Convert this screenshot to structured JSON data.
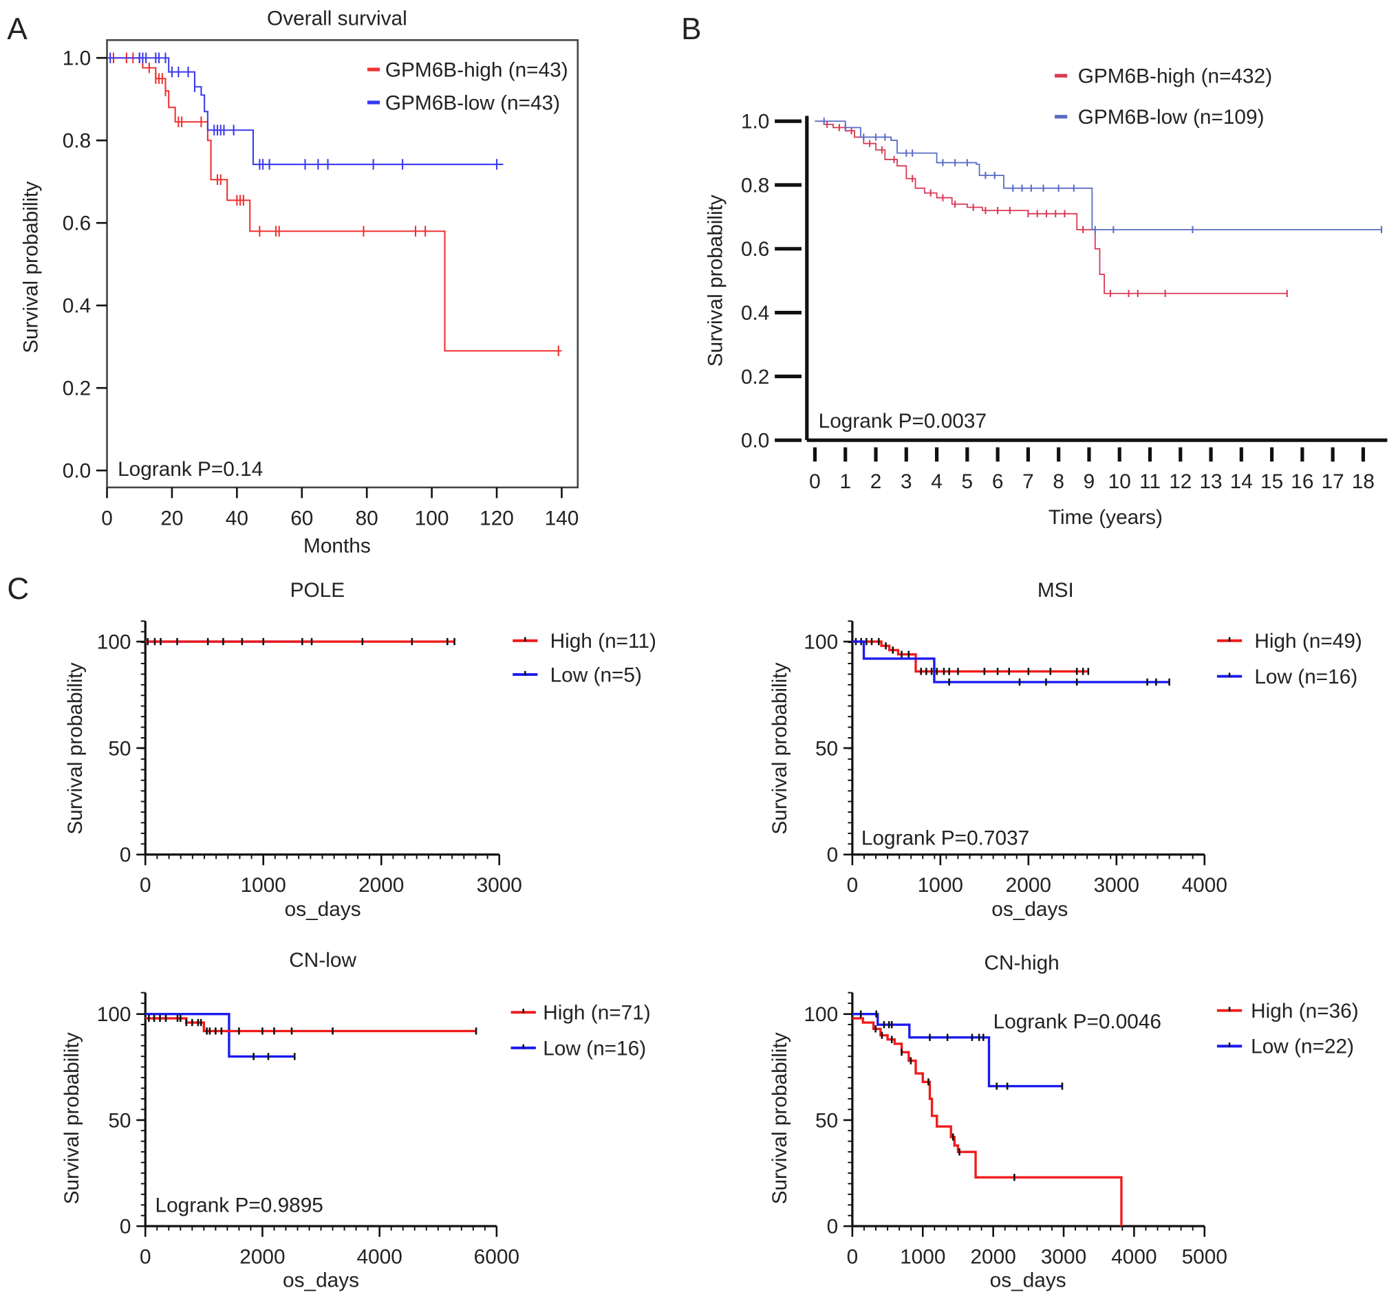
{
  "chart_data": [
    {
      "id": "A",
      "panel_label": "A",
      "type": "line",
      "subtype": "kaplan-meier",
      "title": "Overall survival",
      "xlabel": "Months",
      "ylabel": "Survival probability",
      "xlim": [
        0,
        140
      ],
      "ylim": [
        0,
        1
      ],
      "xticks": [
        "0",
        "20",
        "40",
        "60",
        "80",
        "100",
        "120",
        "140"
      ],
      "xtick_values": [
        0,
        20,
        40,
        60,
        80,
        100,
        120,
        140
      ],
      "yticks": [
        "0.0",
        "0.2",
        "0.4",
        "0.6",
        "0.8",
        "1.0"
      ],
      "ytick_values": [
        0,
        0.2,
        0.4,
        0.6,
        0.8,
        1.0
      ],
      "annotation": "Logrank P=0.14",
      "legend_position": "top-right",
      "series": [
        {
          "name": "GPM6B-high (n=43)",
          "color": "#f03030",
          "steps": [
            [
              0,
              1
            ],
            [
              11,
              0.976
            ],
            [
              15,
              0.95
            ],
            [
              18,
              0.92
            ],
            [
              19,
              0.88
            ],
            [
              21,
              0.845
            ],
            [
              31,
              0.8
            ],
            [
              32,
              0.705
            ],
            [
              37,
              0.655
            ],
            [
              44,
              0.58
            ],
            [
              104,
              0.29
            ],
            [
              140,
              0.29
            ]
          ],
          "censored": [
            2,
            6,
            8,
            10,
            13,
            15,
            16,
            17,
            18,
            22,
            23,
            29,
            34,
            35,
            40,
            41,
            42,
            47,
            52,
            53,
            79,
            95,
            98,
            139
          ]
        },
        {
          "name": "GPM6B-low (n=43)",
          "color": "#3a3af0",
          "steps": [
            [
              0,
              1
            ],
            [
              19,
              0.966
            ],
            [
              27,
              0.93
            ],
            [
              29,
              0.91
            ],
            [
              30,
              0.87
            ],
            [
              31,
              0.825
            ],
            [
              45,
              0.742
            ],
            [
              122,
              0.742
            ]
          ],
          "censored": [
            1,
            10,
            11,
            12,
            15,
            16,
            18,
            20,
            22,
            25,
            27,
            33,
            34,
            35,
            36,
            39,
            47,
            48,
            50,
            61,
            65,
            68,
            82,
            91,
            120
          ]
        }
      ]
    },
    {
      "id": "B",
      "panel_label": "B",
      "type": "line",
      "subtype": "kaplan-meier",
      "title": "",
      "xlabel": "Time (years)",
      "ylabel": "Survival probability",
      "xlim": [
        0,
        18
      ],
      "ylim": [
        0,
        1
      ],
      "xticks": [
        "0",
        "1",
        "2",
        "3",
        "4",
        "5",
        "6",
        "7",
        "8",
        "9",
        "10",
        "11",
        "12",
        "13",
        "14",
        "15",
        "16",
        "17",
        "18"
      ],
      "xtick_values": [
        0,
        1,
        2,
        3,
        4,
        5,
        6,
        7,
        8,
        9,
        10,
        11,
        12,
        13,
        14,
        15,
        16,
        17,
        18
      ],
      "yticks": [
        "0.0",
        "0.2",
        "0.4",
        "0.6",
        "0.8",
        "1.0"
      ],
      "ytick_values": [
        0,
        0.2,
        0.4,
        0.6,
        0.8,
        1.0
      ],
      "annotation": "Logrank P=0.0037",
      "legend_position": "top",
      "series": [
        {
          "name": "GPM6B-high (n=432)",
          "color": "#d83a55",
          "steps": [
            [
              0,
              1
            ],
            [
              0.3,
              0.99
            ],
            [
              0.6,
              0.98
            ],
            [
              1,
              0.97
            ],
            [
              1.3,
              0.95
            ],
            [
              1.6,
              0.93
            ],
            [
              2,
              0.91
            ],
            [
              2.3,
              0.88
            ],
            [
              2.7,
              0.86
            ],
            [
              3,
              0.82
            ],
            [
              3.3,
              0.79
            ],
            [
              3.6,
              0.775
            ],
            [
              4,
              0.76
            ],
            [
              4.5,
              0.74
            ],
            [
              5,
              0.73
            ],
            [
              5.5,
              0.72
            ],
            [
              6.5,
              0.72
            ],
            [
              7,
              0.71
            ],
            [
              8.5,
              0.71
            ],
            [
              8.6,
              0.66
            ],
            [
              9.1,
              0.66
            ],
            [
              9.2,
              0.6
            ],
            [
              9.35,
              0.52
            ],
            [
              9.5,
              0.46
            ],
            [
              15.5,
              0.46
            ]
          ],
          "censored": [
            0.4,
            0.8,
            1.2,
            1.8,
            2.2,
            2.6,
            3.2,
            3.8,
            4.2,
            4.6,
            5.2,
            5.6,
            6,
            6.4,
            7,
            7.3,
            7.6,
            7.9,
            8.2,
            8.8,
            9.7,
            10.3,
            10.6,
            11.5,
            15.5
          ]
        },
        {
          "name": "GPM6B-low (n=109)",
          "color": "#5a6cc6",
          "steps": [
            [
              0,
              1
            ],
            [
              1,
              0.98
            ],
            [
              1.5,
              0.95
            ],
            [
              2.5,
              0.94
            ],
            [
              2.7,
              0.9
            ],
            [
              3.8,
              0.9
            ],
            [
              4,
              0.87
            ],
            [
              5.3,
              0.865
            ],
            [
              5.4,
              0.83
            ],
            [
              6.1,
              0.83
            ],
            [
              6.2,
              0.79
            ],
            [
              9,
              0.79
            ],
            [
              9.1,
              0.66
            ],
            [
              18.6,
              0.66
            ]
          ],
          "censored": [
            0.3,
            1,
            1.6,
            2,
            2.3,
            3,
            3.2,
            4.2,
            4.6,
            5,
            5.6,
            5.9,
            6.5,
            6.8,
            7.1,
            7.5,
            8,
            8.5,
            9.2,
            9.8,
            12.4,
            18.6
          ]
        }
      ]
    },
    {
      "id": "C-POLE",
      "panel_label": "C",
      "type": "line",
      "subtype": "kaplan-meier",
      "title": "POLE",
      "xlabel": "os_days",
      "ylabel": "Survival probability",
      "xlim": [
        0,
        3000
      ],
      "ylim": [
        0,
        100
      ],
      "xticks": [
        "0",
        "1000",
        "2000",
        "3000"
      ],
      "xtick_values": [
        0,
        1000,
        2000,
        3000
      ],
      "yticks": [
        "0",
        "50",
        "100"
      ],
      "ytick_values": [
        0,
        50,
        100
      ],
      "annotation": "",
      "legend_position": "right",
      "series": [
        {
          "name": "Low (n=5)",
          "color": "#1a1af0",
          "steps": [
            [
              0,
              100
            ],
            [
              1400,
              100
            ]
          ],
          "censored": []
        },
        {
          "name": "High (n=11)",
          "color": "#f01a1a",
          "steps": [
            [
              0,
              100
            ],
            [
              2620,
              100
            ]
          ],
          "censored": [
            20,
            80,
            130,
            270,
            530,
            660,
            820,
            1000,
            1330,
            1410,
            1840,
            2260,
            2560,
            2620
          ]
        }
      ],
      "legend_order": [
        1,
        0
      ]
    },
    {
      "id": "C-MSI",
      "panel_label": "",
      "type": "line",
      "subtype": "kaplan-meier",
      "title": "MSI",
      "xlabel": "os_days",
      "ylabel": "Survival probability",
      "xlim": [
        0,
        4000
      ],
      "ylim": [
        0,
        100
      ],
      "xticks": [
        "0",
        "1000",
        "2000",
        "3000",
        "4000"
      ],
      "xtick_values": [
        0,
        1000,
        2000,
        3000,
        4000
      ],
      "yticks": [
        "0",
        "50",
        "100"
      ],
      "ytick_values": [
        0,
        50,
        100
      ],
      "annotation": "Logrank P=0.7037",
      "legend_position": "right",
      "series": [
        {
          "name": "High (n=49)",
          "color": "#f01a1a",
          "steps": [
            [
              0,
              100
            ],
            [
              330,
              98
            ],
            [
              420,
              96
            ],
            [
              520,
              94
            ],
            [
              720,
              86
            ],
            [
              2680,
              86
            ]
          ],
          "censored": [
            40,
            100,
            160,
            220,
            300,
            380,
            460,
            560,
            640,
            780,
            840,
            900,
            960,
            1040,
            1100,
            1200,
            1500,
            1650,
            1780,
            2000,
            2250,
            2550,
            2620,
            2680
          ]
        },
        {
          "name": "Low (n=16)",
          "color": "#1a1af0",
          "steps": [
            [
              0,
              100
            ],
            [
              130,
              92
            ],
            [
              920,
              92
            ],
            [
              930,
              81
            ],
            [
              3600,
              81
            ]
          ],
          "censored": [
            1100,
            1900,
            2200,
            2550,
            3350,
            3450,
            3600
          ]
        }
      ]
    },
    {
      "id": "C-CN-low",
      "panel_label": "",
      "type": "line",
      "subtype": "kaplan-meier",
      "title": "CN-low",
      "xlabel": "os_days",
      "ylabel": "Survival probability",
      "xlim": [
        0,
        6000
      ],
      "ylim": [
        0,
        100
      ],
      "xticks": [
        "0",
        "2000",
        "4000",
        "6000"
      ],
      "xtick_values": [
        0,
        2000,
        4000,
        6000
      ],
      "yticks": [
        "0",
        "50",
        "100"
      ],
      "ytick_values": [
        0,
        50,
        100
      ],
      "annotation": "Logrank P=0.9895",
      "legend_position": "right",
      "series": [
        {
          "name": "Low (n=16)",
          "color": "#1a1af0",
          "steps": [
            [
              0,
              100
            ],
            [
              1420,
              100
            ],
            [
              1430,
              80
            ],
            [
              2550,
              80
            ]
          ],
          "censored": [
            1850,
            2100,
            2550
          ]
        },
        {
          "name": "High (n=71)",
          "color": "#f01a1a",
          "steps": [
            [
              0,
              98
            ],
            [
              650,
              98
            ],
            [
              700,
              96
            ],
            [
              1000,
              92
            ],
            [
              5650,
              92
            ]
          ],
          "censored": [
            60,
            150,
            250,
            350,
            550,
            600,
            700,
            800,
            900,
            950,
            1050,
            1100,
            1200,
            1300,
            1600,
            2000,
            2200,
            2500,
            3200,
            5650
          ]
        }
      ],
      "legend_order": [
        1,
        0
      ]
    },
    {
      "id": "C-CN-high",
      "panel_label": "",
      "type": "line",
      "subtype": "kaplan-meier",
      "title": "CN-high",
      "xlabel": "os_days",
      "ylabel": "Survival probability",
      "xlim": [
        0,
        5000
      ],
      "ylim": [
        0,
        100
      ],
      "xticks": [
        "0",
        "1000",
        "2000",
        "3000",
        "4000",
        "5000"
      ],
      "xtick_values": [
        0,
        1000,
        2000,
        3000,
        4000,
        5000
      ],
      "yticks": [
        "0",
        "50",
        "100"
      ],
      "ytick_values": [
        0,
        50,
        100
      ],
      "annotation": "Logrank P=0.0046",
      "legend_position": "right",
      "series": [
        {
          "name": "High (n=36)",
          "color": "#f01a1a",
          "steps": [
            [
              0,
              98
            ],
            [
              150,
              96
            ],
            [
              300,
              93
            ],
            [
              400,
              90
            ],
            [
              500,
              88
            ],
            [
              600,
              86
            ],
            [
              700,
              82
            ],
            [
              800,
              78
            ],
            [
              900,
              72
            ],
            [
              1000,
              68
            ],
            [
              1100,
              60
            ],
            [
              1130,
              52
            ],
            [
              1200,
              47
            ],
            [
              1400,
              42
            ],
            [
              1450,
              38
            ],
            [
              1500,
              35
            ],
            [
              1750,
              23
            ],
            [
              3820,
              23
            ],
            [
              3820,
              0
            ]
          ],
          "censored": [
            330,
            420,
            560,
            700,
            830,
            1080,
            1430,
            1520,
            2300
          ]
        },
        {
          "name": "Low (n=22)",
          "color": "#1a1af0",
          "steps": [
            [
              0,
              100
            ],
            [
              350,
              100
            ],
            [
              360,
              95
            ],
            [
              800,
              95
            ],
            [
              810,
              89
            ],
            [
              1930,
              89
            ],
            [
              1940,
              66
            ],
            [
              2980,
              66
            ]
          ],
          "censored": [
            120,
            340,
            450,
            520,
            560,
            1100,
            1350,
            1700,
            1800,
            1860,
            2050,
            2200,
            2980
          ]
        }
      ],
      "legend_order": [
        0,
        1
      ]
    }
  ]
}
